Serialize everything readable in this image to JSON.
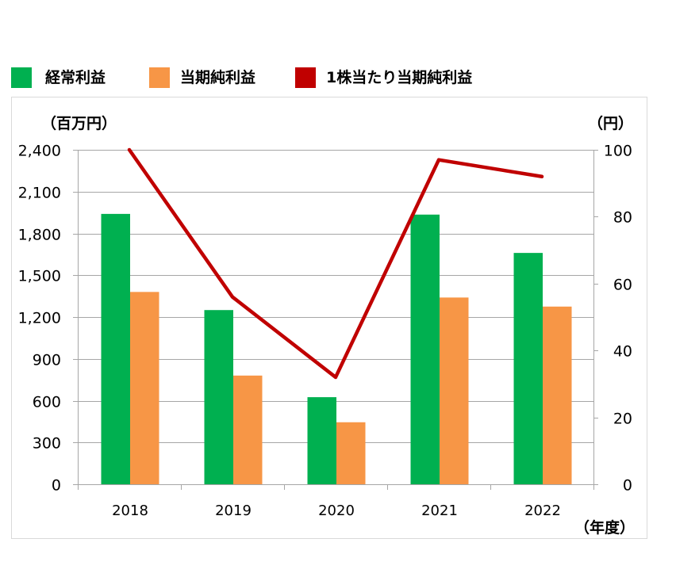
{
  "chart_data": {
    "type": "bar",
    "categories": [
      "2018",
      "2019",
      "2020",
      "2021",
      "2022"
    ],
    "series": [
      {
        "name": "経常利益",
        "type": "bar",
        "axis": "left",
        "color": "#00b050",
        "values": [
          1940,
          1250,
          625,
          1935,
          1660
        ]
      },
      {
        "name": "当期純利益",
        "type": "bar",
        "axis": "left",
        "color": "#f79646",
        "values": [
          1380,
          780,
          445,
          1340,
          1275
        ]
      },
      {
        "name": "1株当たり当期純利益",
        "type": "line",
        "axis": "right",
        "color": "#c00000",
        "values": [
          100,
          56,
          32,
          97,
          92
        ]
      }
    ],
    "xlabel": "（年度）",
    "ylabel": "（百万円）",
    "y2label": "（円）",
    "ylim": [
      0,
      2400
    ],
    "y2lim": [
      0,
      100
    ],
    "yticks": [
      "0",
      "300",
      "600",
      "900",
      "1,200",
      "1,500",
      "1,800",
      "2,100",
      "2,400"
    ],
    "y2ticks": [
      "0",
      "20",
      "40",
      "60",
      "80",
      "100"
    ],
    "grid": true,
    "legend_position": "top-left",
    "colors": {
      "grid": "#a6a6a6",
      "frame": "#d9d9d9"
    }
  }
}
